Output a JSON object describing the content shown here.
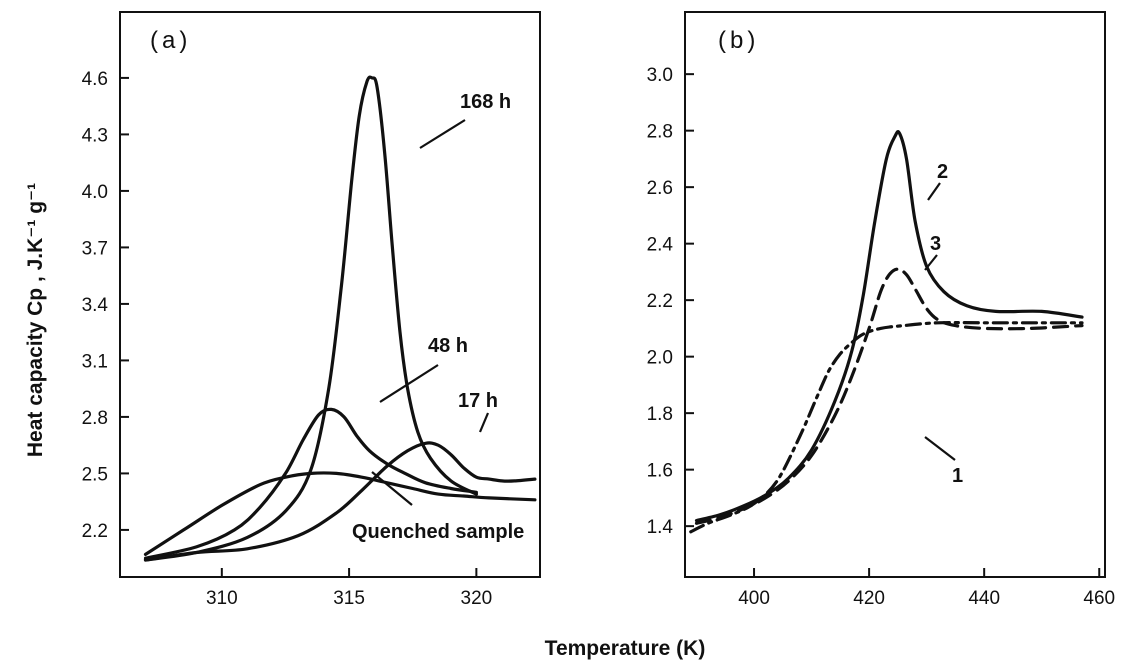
{
  "chart_data": [
    {
      "panel": "a",
      "type": "line",
      "panel_label": "(a)",
      "ylabel": "Heat capacity  Cp ,  J.K⁻¹ g⁻¹",
      "xlim": [
        306,
        322.5
      ],
      "ylim": [
        1.95,
        4.95
      ],
      "xticks": [
        310,
        315,
        320
      ],
      "yticks": [
        2.2,
        2.5,
        2.8,
        3.1,
        3.4,
        3.7,
        4.0,
        4.3,
        4.6
      ],
      "ytick_labels": [
        "2.2",
        "2.5",
        "2.8",
        "3.1",
        "3.4",
        "3.7",
        "4.0",
        "4.3",
        "4.6"
      ],
      "series": [
        {
          "name": "168 h",
          "style": "solid",
          "x": [
            307.0,
            309.0,
            311.0,
            312.5,
            313.5,
            314.2,
            314.7,
            315.1,
            315.4,
            315.7,
            315.9,
            316.1,
            316.4,
            316.7,
            317.0,
            317.3,
            317.7,
            318.2,
            319.0,
            320.0
          ],
          "y": [
            2.04,
            2.08,
            2.16,
            2.3,
            2.52,
            2.95,
            3.5,
            4.05,
            4.4,
            4.58,
            4.6,
            4.55,
            4.2,
            3.7,
            3.25,
            2.95,
            2.72,
            2.58,
            2.46,
            2.39
          ]
        },
        {
          "name": "48 h",
          "style": "solid",
          "x": [
            307.0,
            309.0,
            310.5,
            311.5,
            312.5,
            313.2,
            313.8,
            314.3,
            314.8,
            315.3,
            315.8,
            316.5,
            317.2,
            318.0,
            319.0,
            320.0
          ],
          "y": [
            2.05,
            2.11,
            2.2,
            2.32,
            2.5,
            2.68,
            2.81,
            2.84,
            2.8,
            2.7,
            2.62,
            2.55,
            2.5,
            2.45,
            2.42,
            2.4
          ]
        },
        {
          "name": "17 h",
          "style": "solid",
          "x": [
            307.0,
            309.0,
            311.0,
            313.0,
            314.5,
            315.5,
            316.5,
            317.3,
            318.0,
            318.5,
            319.0,
            319.5,
            320.0,
            320.5,
            321.0,
            321.5,
            322.3
          ],
          "y": [
            2.04,
            2.08,
            2.1,
            2.17,
            2.29,
            2.41,
            2.54,
            2.62,
            2.66,
            2.65,
            2.6,
            2.53,
            2.48,
            2.47,
            2.46,
            2.46,
            2.47
          ]
        },
        {
          "name": "Quenched sample",
          "style": "solid",
          "x": [
            307.0,
            308.5,
            310.0,
            311.5,
            312.5,
            313.5,
            314.5,
            315.5,
            316.5,
            317.5,
            318.5,
            319.5,
            320.5,
            322.3
          ],
          "y": [
            2.07,
            2.2,
            2.33,
            2.44,
            2.48,
            2.5,
            2.5,
            2.48,
            2.45,
            2.42,
            2.39,
            2.38,
            2.37,
            2.36
          ]
        }
      ],
      "annotations": [
        "168 h",
        "48 h",
        "17 h",
        "Quenched sample"
      ]
    },
    {
      "panel": "b",
      "type": "line",
      "panel_label": "(b)",
      "xlim": [
        388,
        461
      ],
      "ylim": [
        1.22,
        3.22
      ],
      "xticks": [
        400,
        420,
        440,
        460
      ],
      "yticks": [
        1.4,
        1.6,
        1.8,
        2.0,
        2.2,
        2.4,
        2.6,
        2.8,
        3.0
      ],
      "ytick_labels": [
        "1.4",
        "1.6",
        "1.8",
        "2.0",
        "2.2",
        "2.4",
        "2.6",
        "2.8",
        "3.0"
      ],
      "series": [
        {
          "name": "1",
          "style": "dashdot",
          "x": [
            389.0,
            392.0,
            396.0,
            400.0,
            404.0,
            408.0,
            411.0,
            413.0,
            415.0,
            417.0,
            419.0,
            422.0,
            426.0,
            432.0,
            440.0,
            450.0,
            457.0
          ],
          "y": [
            1.38,
            1.41,
            1.44,
            1.48,
            1.56,
            1.72,
            1.86,
            1.95,
            2.01,
            2.05,
            2.08,
            2.1,
            2.11,
            2.12,
            2.12,
            2.12,
            2.12
          ]
        },
        {
          "name": "2",
          "style": "solid",
          "x": [
            390.0,
            394.0,
            398.0,
            402.0,
            406.0,
            410.0,
            414.0,
            417.0,
            419.0,
            421.0,
            423.0,
            424.5,
            425.3,
            426.5,
            428.0,
            430.0,
            433.0,
            437.0,
            442.0,
            450.0,
            457.0
          ],
          "y": [
            1.42,
            1.44,
            1.47,
            1.51,
            1.57,
            1.67,
            1.84,
            2.02,
            2.22,
            2.48,
            2.7,
            2.78,
            2.79,
            2.7,
            2.48,
            2.32,
            2.23,
            2.18,
            2.16,
            2.16,
            2.14
          ]
        },
        {
          "name": "3",
          "style": "dashed",
          "x": [
            390.0,
            394.0,
            398.0,
            402.0,
            406.0,
            410.0,
            414.0,
            417.0,
            420.0,
            422.0,
            423.5,
            425.0,
            426.5,
            428.0,
            430.0,
            432.0,
            435.0,
            440.0,
            448.0,
            457.0
          ],
          "y": [
            1.41,
            1.43,
            1.46,
            1.5,
            1.56,
            1.65,
            1.79,
            1.93,
            2.1,
            2.23,
            2.29,
            2.31,
            2.29,
            2.24,
            2.17,
            2.13,
            2.11,
            2.1,
            2.1,
            2.11
          ]
        }
      ],
      "annotations": [
        "1",
        "2",
        "3"
      ]
    }
  ],
  "figure": {
    "xlabel": "Temperature (K)"
  }
}
